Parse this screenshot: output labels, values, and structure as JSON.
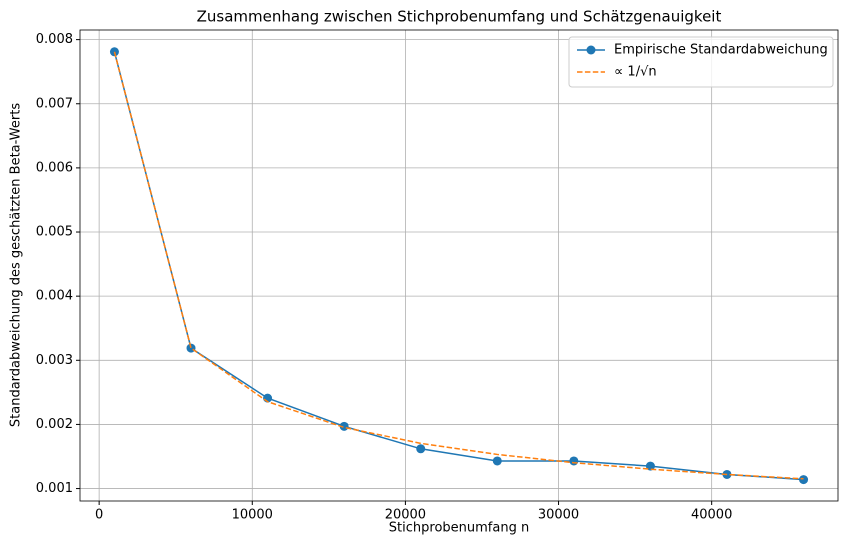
{
  "chart_data": {
    "type": "line",
    "title": "Zusammenhang zwischen Stichprobenumfang und Schätzgenauigkeit",
    "x_label": "Stichprobenumfang n",
    "y_label": "Standardabweichung des geschätzten Beta-Werts",
    "x": [
      1000,
      6000,
      11000,
      16000,
      21000,
      26000,
      31000,
      36000,
      41000,
      46000
    ],
    "series": [
      {
        "name": "Empirische Standardabweichung",
        "color": "#1f77b4",
        "marker": "o",
        "linestyle": "solid",
        "values": [
          0.00781,
          0.00319,
          0.00241,
          0.00197,
          0.00162,
          0.00143,
          0.00143,
          0.00135,
          0.00122,
          0.00114
        ]
      },
      {
        "name": "∝ 1/√n",
        "color": "#ff7f0e",
        "marker": null,
        "linestyle": "dashed",
        "values": [
          0.00781,
          0.00319,
          0.002355,
          0.001953,
          0.001705,
          0.001532,
          0.001403,
          0.001302,
          0.00122,
          0.001152
        ]
      }
    ],
    "xlim": [
      -1250,
      48250
    ],
    "ylim": [
      0.000806,
      0.00815
    ],
    "xticks": [
      0,
      10000,
      20000,
      30000,
      40000
    ],
    "yticks": [
      0.001,
      0.002,
      0.003,
      0.004,
      0.005,
      0.006,
      0.007,
      0.008
    ],
    "grid": true,
    "legend": "upper right"
  }
}
